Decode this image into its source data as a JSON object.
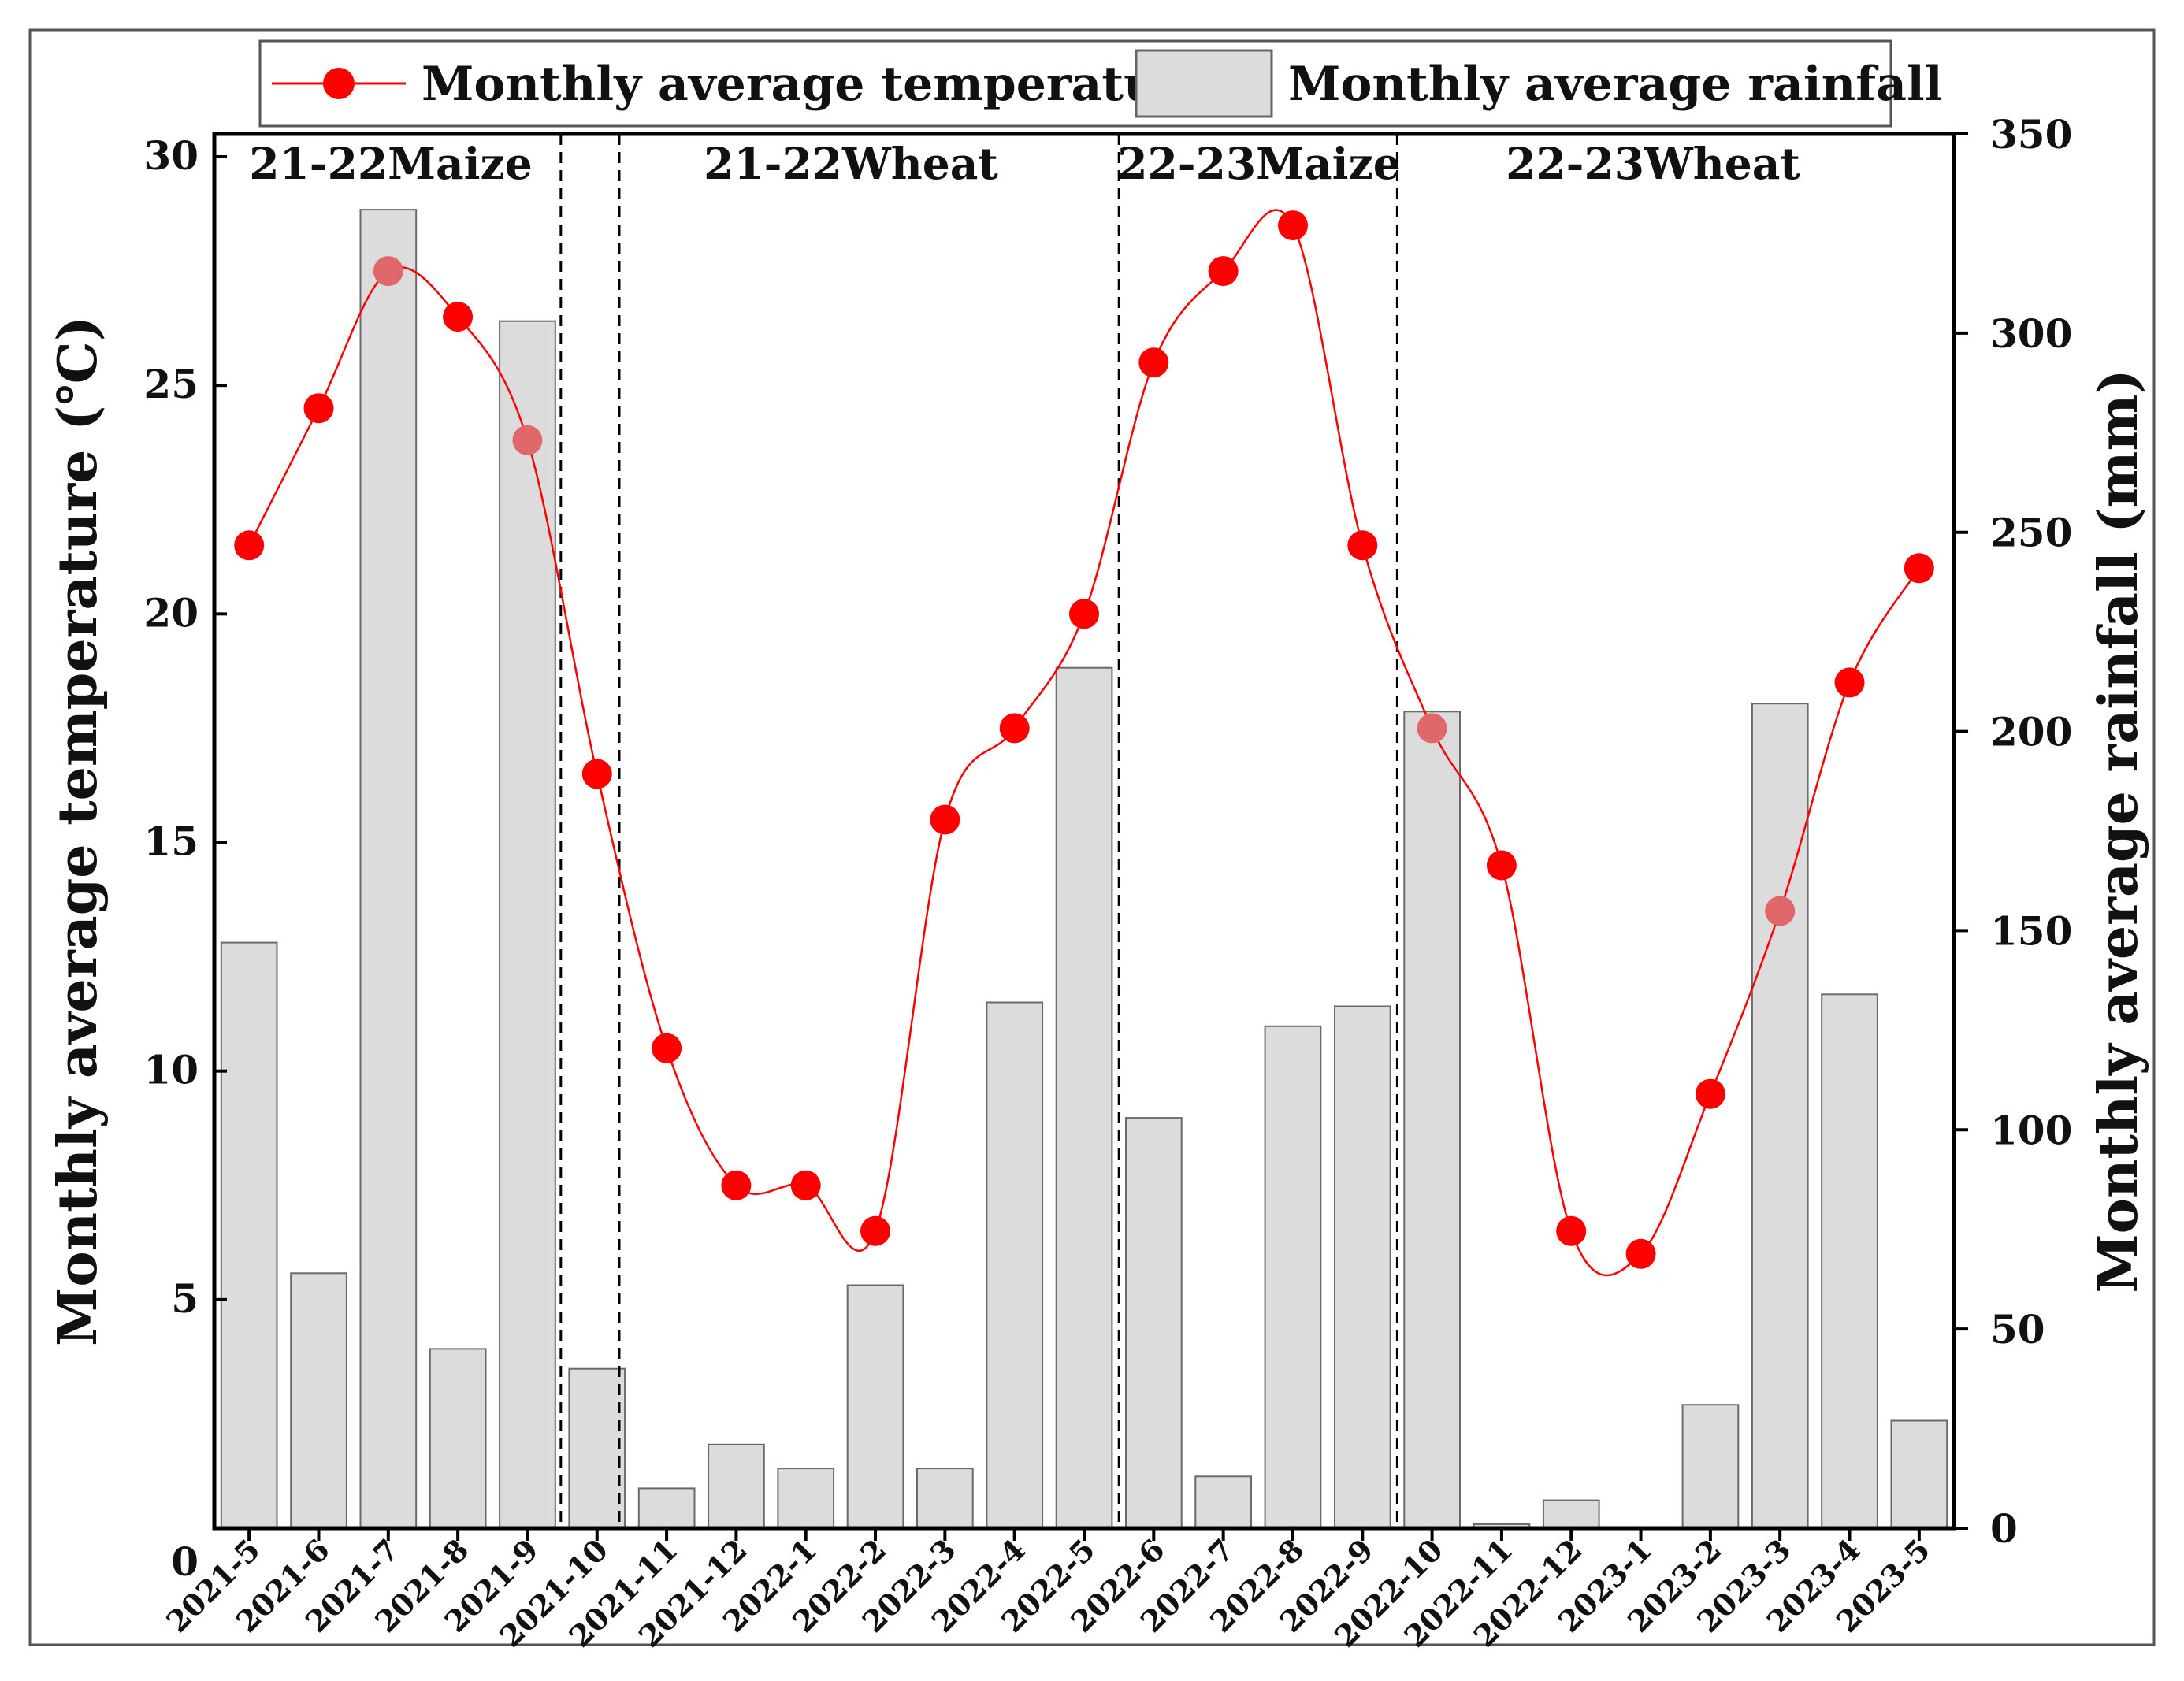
{
  "chart_data": {
    "type": "bar",
    "title": "",
    "categories": [
      "2021-5",
      "2021-6",
      "2021-7",
      "2021-8",
      "2021-9",
      "2021-10",
      "2021-11",
      "2021-12",
      "2022-1",
      "2022-2",
      "2022-3",
      "2022-4",
      "2022-5",
      "2022-6",
      "2022-7",
      "2022-8",
      "2022-9",
      "2022-10",
      "2022-11",
      "2022-12",
      "2023-1",
      "2023-2",
      "2023-3",
      "2023-4",
      "2023-5"
    ],
    "series": [
      {
        "name": "Monthly average rainfall",
        "type": "bar",
        "axis": "right",
        "color": "#dcdcdc",
        "values": [
          147,
          64,
          331,
          45,
          303,
          40,
          10,
          21,
          15,
          61,
          15,
          132,
          216,
          103,
          13,
          126,
          131,
          205,
          1,
          7,
          0,
          31,
          207,
          134,
          27
        ]
      },
      {
        "name": "Monthly average temperature",
        "type": "line",
        "axis": "left",
        "color": "#ff0000",
        "values": [
          21.5,
          24.5,
          27.5,
          26.5,
          23.8,
          16.5,
          10.5,
          7.5,
          7.5,
          6.5,
          15.5,
          17.5,
          20,
          25.5,
          27.5,
          28.5,
          21.5,
          17.5,
          14.5,
          6.5,
          6,
          9.5,
          13.5,
          18.5,
          21
        ]
      }
    ],
    "y_left": {
      "label": "Monthly average temperature (℃)",
      "lim": [
        0,
        30.5
      ],
      "ticks": [
        0,
        5,
        10,
        15,
        20,
        25,
        30
      ]
    },
    "y_right": {
      "label": "Monthly average rainfall (mm)",
      "lim": [
        0,
        350
      ],
      "ticks": [
        0,
        50,
        100,
        150,
        200,
        250,
        300,
        350
      ]
    },
    "xlabel": "",
    "legend": {
      "placement": "top",
      "items": [
        "Monthly average temperature",
        "Monthly average rainfall"
      ]
    },
    "regions": [
      {
        "label": "21-22Maize",
        "from": 0,
        "to": 4
      },
      {
        "label": "21-22Wheat",
        "from": 5,
        "to": 12
      },
      {
        "label": "22-23Maize",
        "from": 13,
        "to": 16
      },
      {
        "label": "22-23Wheat",
        "from": 17,
        "to": 24
      }
    ],
    "grid": false
  }
}
